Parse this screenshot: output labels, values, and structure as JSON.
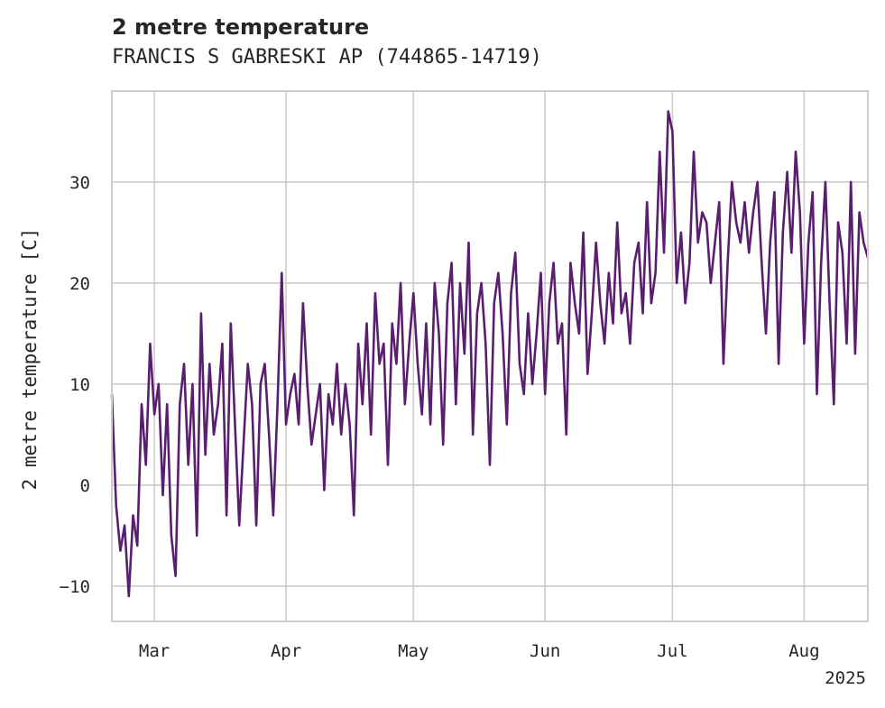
{
  "chart_data": {
    "type": "line",
    "title": "2 metre temperature",
    "subtitle": "FRANCIS S GABRESKI AP (744865-14719)",
    "xlabel": "",
    "ylabel": "2 metre temperature [C]",
    "x_range": [
      "2025-02-19",
      "2025-08-16"
    ],
    "ylim": [
      -13.5,
      39.0
    ],
    "y_ticks": [
      -10,
      0,
      10,
      20,
      30
    ],
    "y_tick_labels": [
      "−10",
      "0",
      "10",
      "20",
      "30"
    ],
    "x_ticks": [
      {
        "date": "2025-03-01",
        "label": "Mar"
      },
      {
        "date": "2025-04-01",
        "label": "Apr"
      },
      {
        "date": "2025-05-01",
        "label": "May"
      },
      {
        "date": "2025-06-01",
        "label": "Jun"
      },
      {
        "date": "2025-07-01",
        "label": "Jul"
      },
      {
        "date": "2025-08-01",
        "label": "Aug"
      }
    ],
    "x_offset_label": "2025",
    "grid": true,
    "legend": "none",
    "line_color": "#5a1e6e",
    "series": [
      {
        "x": [
          "2025-02-19",
          "2025-02-20",
          "2025-02-21",
          "2025-02-22",
          "2025-02-23",
          "2025-02-24",
          "2025-02-25",
          "2025-02-26",
          "2025-02-27",
          "2025-02-28",
          "2025-03-01",
          "2025-03-02",
          "2025-03-03",
          "2025-03-04",
          "2025-03-05",
          "2025-03-06",
          "2025-03-07",
          "2025-03-08",
          "2025-03-09",
          "2025-03-10",
          "2025-03-11",
          "2025-03-12",
          "2025-03-13",
          "2025-03-14",
          "2025-03-15",
          "2025-03-16",
          "2025-03-17",
          "2025-03-18",
          "2025-03-19",
          "2025-03-20",
          "2025-03-21",
          "2025-03-22",
          "2025-03-23",
          "2025-03-24",
          "2025-03-25",
          "2025-03-26",
          "2025-03-27",
          "2025-03-28",
          "2025-03-29",
          "2025-03-30",
          "2025-03-31",
          "2025-04-01",
          "2025-04-02",
          "2025-04-03",
          "2025-04-04",
          "2025-04-05",
          "2025-04-06",
          "2025-04-07",
          "2025-04-08",
          "2025-04-09",
          "2025-04-10",
          "2025-04-11",
          "2025-04-12",
          "2025-04-13",
          "2025-04-14",
          "2025-04-15",
          "2025-04-16",
          "2025-04-17",
          "2025-04-18",
          "2025-04-19",
          "2025-04-20",
          "2025-04-21",
          "2025-04-22",
          "2025-04-23",
          "2025-04-24",
          "2025-04-25",
          "2025-04-26",
          "2025-04-27",
          "2025-04-28",
          "2025-04-29",
          "2025-04-30",
          "2025-05-01",
          "2025-05-02",
          "2025-05-03",
          "2025-05-04",
          "2025-05-05",
          "2025-05-06",
          "2025-05-07",
          "2025-05-08",
          "2025-05-09",
          "2025-05-10",
          "2025-05-11",
          "2025-05-12",
          "2025-05-13",
          "2025-05-14",
          "2025-05-15",
          "2025-05-16",
          "2025-05-17",
          "2025-05-18",
          "2025-05-19",
          "2025-05-20",
          "2025-05-21",
          "2025-05-22",
          "2025-05-23",
          "2025-05-24",
          "2025-05-25",
          "2025-05-26",
          "2025-05-27",
          "2025-05-28",
          "2025-05-29",
          "2025-05-30",
          "2025-05-31",
          "2025-06-01",
          "2025-06-02",
          "2025-06-03",
          "2025-06-04",
          "2025-06-05",
          "2025-06-06",
          "2025-06-07",
          "2025-06-08",
          "2025-06-09",
          "2025-06-10",
          "2025-06-11",
          "2025-06-12",
          "2025-06-13",
          "2025-06-14",
          "2025-06-15",
          "2025-06-16",
          "2025-06-17",
          "2025-06-18",
          "2025-06-19",
          "2025-06-20",
          "2025-06-21",
          "2025-06-22",
          "2025-06-23",
          "2025-06-24",
          "2025-06-25",
          "2025-06-26",
          "2025-06-27",
          "2025-06-28",
          "2025-06-29",
          "2025-06-30",
          "2025-07-01",
          "2025-07-02",
          "2025-07-03",
          "2025-07-04",
          "2025-07-05",
          "2025-07-06",
          "2025-07-07",
          "2025-07-08",
          "2025-07-09",
          "2025-07-10",
          "2025-07-11",
          "2025-07-12",
          "2025-07-13",
          "2025-07-14",
          "2025-07-15",
          "2025-07-16",
          "2025-07-17",
          "2025-07-18",
          "2025-07-19",
          "2025-07-20",
          "2025-07-21",
          "2025-07-22",
          "2025-07-23",
          "2025-07-24",
          "2025-07-25",
          "2025-07-26",
          "2025-07-27",
          "2025-07-28",
          "2025-07-29",
          "2025-07-30",
          "2025-07-31",
          "2025-08-01",
          "2025-08-02",
          "2025-08-03",
          "2025-08-04",
          "2025-08-05",
          "2025-08-06",
          "2025-08-07",
          "2025-08-08",
          "2025-08-09",
          "2025-08-10",
          "2025-08-11",
          "2025-08-12",
          "2025-08-13",
          "2025-08-14",
          "2025-08-15",
          "2025-08-16"
        ],
        "y": [
          9.0,
          -2.0,
          -6.5,
          -4.0,
          -11.0,
          -3.0,
          -6.0,
          8.0,
          2.0,
          14.0,
          7.0,
          10.0,
          -1.0,
          8.0,
          -5.0,
          -9.0,
          8.0,
          12.0,
          2.0,
          10.0,
          -5.0,
          17.0,
          3.0,
          12.0,
          5.0,
          8.0,
          14.0,
          -3.0,
          16.0,
          6.0,
          -4.0,
          4.0,
          12.0,
          8.0,
          -4.0,
          10.0,
          12.0,
          5.0,
          -3.0,
          8.0,
          21.0,
          6.0,
          9.0,
          11.0,
          6.0,
          18.0,
          10.0,
          4.0,
          7.0,
          10.0,
          -0.5,
          9.0,
          6.0,
          12.0,
          5.0,
          10.0,
          6.0,
          -3.0,
          14.0,
          8.0,
          16.0,
          5.0,
          19.0,
          12.0,
          14.0,
          2.0,
          16.0,
          12.0,
          20.0,
          8.0,
          14.0,
          19.0,
          12.0,
          7.0,
          16.0,
          6.0,
          20.0,
          15.0,
          4.0,
          18.0,
          22.0,
          8.0,
          20.0,
          13.0,
          24.0,
          5.0,
          17.0,
          20.0,
          14.0,
          2.0,
          18.0,
          21.0,
          15.0,
          6.0,
          19.0,
          23.0,
          12.0,
          9.0,
          17.0,
          10.0,
          15.0,
          21.0,
          9.0,
          18.0,
          22.0,
          14.0,
          16.0,
          5.0,
          22.0,
          18.0,
          15.0,
          25.0,
          11.0,
          17.0,
          24.0,
          18.0,
          14.0,
          21.0,
          16.0,
          26.0,
          17.0,
          19.0,
          14.0,
          22.0,
          24.0,
          17.0,
          28.0,
          18.0,
          21.0,
          33.0,
          23.0,
          37.0,
          35.0,
          20.0,
          25.0,
          18.0,
          22.0,
          33.0,
          24.0,
          27.0,
          26.0,
          20.0,
          24.0,
          28.0,
          12.0,
          22.0,
          30.0,
          26.0,
          24.0,
          28.0,
          23.0,
          27.0,
          30.0,
          22.0,
          15.0,
          24.0,
          29.0,
          12.0,
          25.0,
          31.0,
          23.0,
          33.0,
          27.0,
          14.0,
          24.0,
          29.0,
          9.0,
          22.0,
          30.0,
          18.0,
          8.0,
          26.0,
          23.0,
          14.0,
          30.0,
          13.0,
          27.0,
          24.0,
          22.5
        ]
      }
    ]
  }
}
